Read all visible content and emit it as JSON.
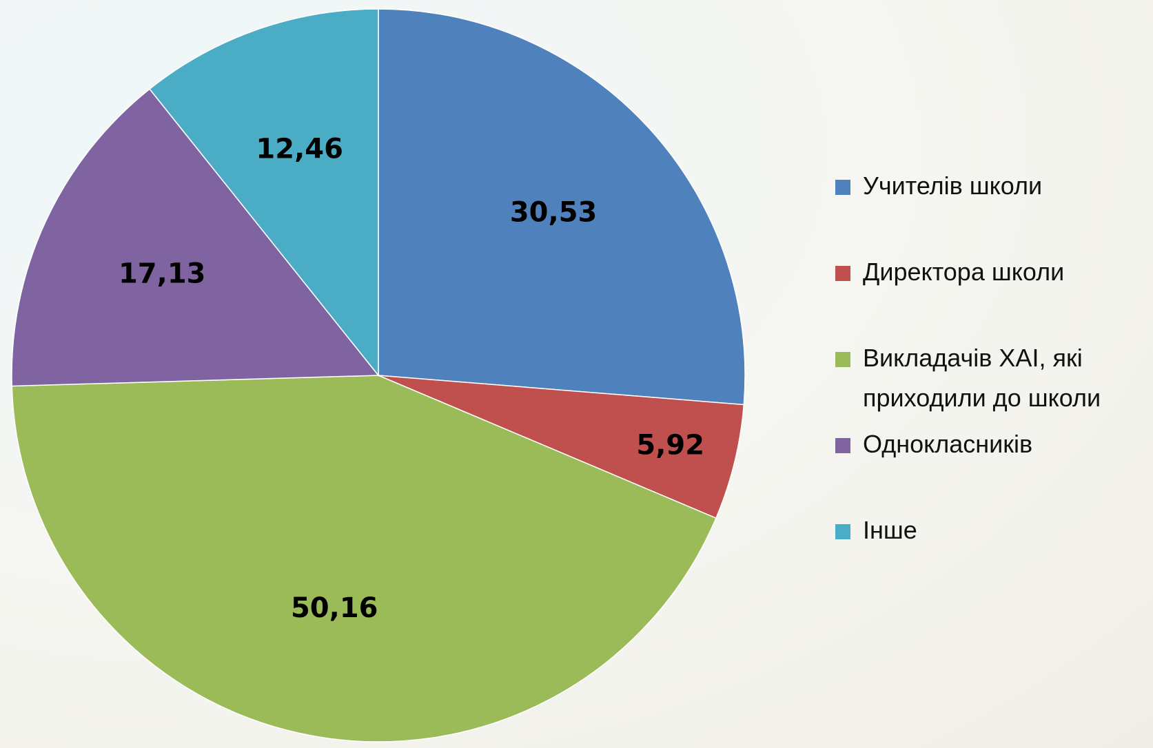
{
  "chart_data": {
    "type": "pie",
    "categories": [
      "Учителів школи",
      "Директора школи",
      "Викладачів ХАІ, які приходили до школи",
      "Однокласників",
      "Інше"
    ],
    "values": [
      30.53,
      5.92,
      50.16,
      17.13,
      12.46
    ],
    "value_labels": [
      "30,53",
      "5,92",
      "50,16",
      "17,13",
      "12,46"
    ],
    "colors": [
      "#4f81bd",
      "#c0504d",
      "#9bbb59",
      "#8064a2",
      "#4bacc6"
    ],
    "legend": "right"
  }
}
